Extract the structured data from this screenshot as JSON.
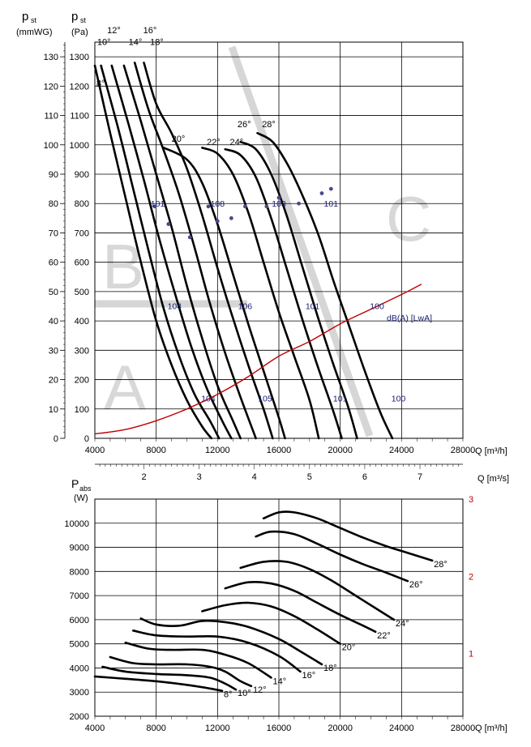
{
  "chart_data": [
    {
      "type": "line",
      "title": "",
      "xlabel": "Q [m³/h]",
      "x2label": "Q [m³/s]",
      "ylabel_left": [
        "p",
        "st",
        "(mmWG)"
      ],
      "ylabel_right": [
        "p",
        "st",
        "(Pa)"
      ],
      "xlim": [
        4000,
        28000
      ],
      "ylim_pa": [
        0,
        1350
      ],
      "ylim_mmwg": [
        0,
        135
      ],
      "x_ticks": [
        "4000",
        "8000",
        "12000",
        "16000",
        "20000",
        "24000",
        "28000"
      ],
      "x2_ticks": [
        "2",
        "3",
        "4",
        "5",
        "6",
        "7"
      ],
      "y_ticks_pa": [
        "0",
        "100",
        "200",
        "300",
        "400",
        "500",
        "600",
        "700",
        "800",
        "900",
        "1000",
        "1100",
        "1200",
        "1300"
      ],
      "y_ticks_mmwg": [
        "0",
        "10",
        "20",
        "30",
        "40",
        "50",
        "60",
        "70",
        "80",
        "90",
        "100",
        "110",
        "120",
        "130"
      ],
      "zones": [
        "A",
        "B",
        "C"
      ],
      "series": [
        {
          "name": "8°",
          "label": "8°",
          "points": [
            [
              4000,
              1270
            ],
            [
              5000,
              1040
            ],
            [
              6000,
              820
            ],
            [
              7000,
              600
            ],
            [
              8000,
              400
            ],
            [
              9000,
              250
            ],
            [
              10000,
              130
            ],
            [
              11000,
              40
            ],
            [
              11600,
              0
            ]
          ]
        },
        {
          "name": "10°",
          "label": "10°",
          "points": [
            [
              4400,
              1270
            ],
            [
              5500,
              1060
            ],
            [
              6500,
              850
            ],
            [
              7500,
              640
            ],
            [
              8500,
              440
            ],
            [
              9500,
              280
            ],
            [
              10500,
              150
            ],
            [
              11500,
              60
            ],
            [
              12100,
              0
            ]
          ]
        },
        {
          "name": "12°",
          "label": "12°",
          "points": [
            [
              5100,
              1270
            ],
            [
              6200,
              1070
            ],
            [
              7200,
              880
            ],
            [
              8200,
              680
            ],
            [
              9300,
              480
            ],
            [
              10300,
              310
            ],
            [
              11300,
              170
            ],
            [
              12300,
              60
            ],
            [
              12900,
              0
            ]
          ]
        },
        {
          "name": "14°",
          "label": "14°",
          "points": [
            [
              5900,
              1270
            ],
            [
              7000,
              1080
            ],
            [
              8000,
              900
            ],
            [
              9000,
              720
            ],
            [
              10000,
              520
            ],
            [
              11000,
              340
            ],
            [
              12000,
              180
            ],
            [
              13000,
              60
            ],
            [
              13500,
              0
            ]
          ]
        },
        {
          "name": "16°",
          "label": "16°",
          "points": [
            [
              6600,
              1280
            ],
            [
              7500,
              1120
            ],
            [
              8500,
              980
            ],
            [
              9500,
              830
            ],
            [
              10500,
              650
            ],
            [
              11500,
              460
            ],
            [
              12500,
              290
            ],
            [
              13500,
              140
            ],
            [
              14500,
              0
            ]
          ]
        },
        {
          "name": "18°",
          "label": "18°",
          "points": [
            [
              7200,
              1280
            ],
            [
              8000,
              1140
            ],
            [
              9000,
              1040
            ],
            [
              10000,
              920
            ],
            [
              11000,
              760
            ],
            [
              12000,
              580
            ],
            [
              13000,
              410
            ],
            [
              14000,
              250
            ],
            [
              15000,
              100
            ],
            [
              15600,
              0
            ]
          ]
        },
        {
          "name": "20°",
          "label": "20°",
          "points": [
            [
              8500,
              990
            ],
            [
              10000,
              950
            ],
            [
              11000,
              870
            ],
            [
              12000,
              730
            ],
            [
              13000,
              560
            ],
            [
              14000,
              390
            ],
            [
              15000,
              230
            ],
            [
              16000,
              70
            ],
            [
              16400,
              0
            ]
          ]
        },
        {
          "name": "22°",
          "label": "22°",
          "points": [
            [
              11000,
              990
            ],
            [
              12000,
              970
            ],
            [
              13000,
              900
            ],
            [
              14000,
              770
            ],
            [
              15000,
              600
            ],
            [
              16000,
              430
            ],
            [
              17000,
              280
            ],
            [
              18000,
              130
            ],
            [
              18600,
              0
            ]
          ]
        },
        {
          "name": "24°",
          "label": "24°",
          "points": [
            [
              12500,
              985
            ],
            [
              13500,
              965
            ],
            [
              14500,
              890
            ],
            [
              15500,
              750
            ],
            [
              16500,
              580
            ],
            [
              17500,
              410
            ],
            [
              18500,
              250
            ],
            [
              19500,
              100
            ],
            [
              20100,
              0
            ]
          ]
        },
        {
          "name": "26°",
          "label": "26°",
          "points": [
            [
              13500,
              1010
            ],
            [
              14500,
              985
            ],
            [
              15500,
              900
            ],
            [
              16500,
              760
            ],
            [
              17500,
              590
            ],
            [
              18500,
              420
            ],
            [
              19500,
              260
            ],
            [
              20500,
              110
            ],
            [
              21100,
              0
            ]
          ]
        },
        {
          "name": "28°",
          "label": "28°",
          "points": [
            [
              14600,
              1040
            ],
            [
              15600,
              1010
            ],
            [
              16600,
              930
            ],
            [
              17600,
              820
            ],
            [
              18600,
              690
            ],
            [
              19600,
              530
            ],
            [
              20600,
              380
            ],
            [
              21600,
              230
            ],
            [
              22600,
              90
            ],
            [
              23400,
              0
            ]
          ]
        },
        {
          "name": "dB(A) [LwA]",
          "color": "#c00000",
          "points": [
            [
              4000,
              15
            ],
            [
              6000,
              30
            ],
            [
              8000,
              60
            ],
            [
              10000,
              100
            ],
            [
              12000,
              150
            ],
            [
              14000,
              210
            ],
            [
              16000,
              280
            ],
            [
              18000,
              330
            ],
            [
              20000,
              390
            ],
            [
              22000,
              440
            ],
            [
              24000,
              490
            ],
            [
              25300,
              525
            ]
          ]
        }
      ],
      "noise_labels": [
        {
          "text": "101",
          "x": 8100,
          "y": 790
        },
        {
          "text": "108",
          "x": 12000,
          "y": 790
        },
        {
          "text": "103",
          "x": 16000,
          "y": 790
        },
        {
          "text": "101",
          "x": 19400,
          "y": 790
        },
        {
          "text": "104",
          "x": 9200,
          "y": 440
        },
        {
          "text": "106",
          "x": 13800,
          "y": 440
        },
        {
          "text": "101",
          "x": 18200,
          "y": 440
        },
        {
          "text": "100",
          "x": 22400,
          "y": 440
        },
        {
          "text": "104",
          "x": 11400,
          "y": 125
        },
        {
          "text": "105",
          "x": 15100,
          "y": 125
        },
        {
          "text": "101",
          "x": 20000,
          "y": 125
        },
        {
          "text": "100",
          "x": 23800,
          "y": 125
        }
      ],
      "noise_legend": "dB(A) [LwA]",
      "noise_dots": [
        [
          7900,
          790
        ],
        [
          8800,
          730
        ],
        [
          10200,
          685
        ],
        [
          11400,
          790
        ],
        [
          12000,
          740
        ],
        [
          12900,
          750
        ],
        [
          13800,
          790
        ],
        [
          15200,
          790
        ],
        [
          16000,
          820
        ],
        [
          17300,
          800
        ],
        [
          18800,
          835
        ],
        [
          19400,
          850
        ]
      ]
    },
    {
      "type": "line",
      "title": "",
      "xlabel": "Q [m³/h]",
      "ylabel": [
        "P",
        "abs",
        "(W)"
      ],
      "xlim": [
        4000,
        28000
      ],
      "ylim": [
        2000,
        11000
      ],
      "x_ticks": [
        "4000",
        "8000",
        "12000",
        "16000",
        "20000",
        "24000",
        "28000"
      ],
      "y_ticks": [
        "2000",
        "3000",
        "4000",
        "5000",
        "6000",
        "7000",
        "8000",
        "9000",
        "10000"
      ],
      "right_ticks": [
        "1",
        "2",
        "3"
      ],
      "right_tick_values": [
        4600,
        7800,
        11000
      ],
      "right_tick_color": "#c00000",
      "series": [
        {
          "name": "8°",
          "label": "8°",
          "points": [
            [
              4000,
              3650
            ],
            [
              6000,
              3550
            ],
            [
              8000,
              3450
            ],
            [
              10000,
              3300
            ],
            [
              11500,
              3150
            ],
            [
              12300,
              3050
            ]
          ]
        },
        {
          "name": "10°",
          "label": "10°",
          "points": [
            [
              4500,
              4050
            ],
            [
              6000,
              3850
            ],
            [
              8000,
              3750
            ],
            [
              10000,
              3700
            ],
            [
              11500,
              3600
            ],
            [
              12500,
              3350
            ],
            [
              13200,
              3100
            ]
          ]
        },
        {
          "name": "12°",
          "label": "12°",
          "points": [
            [
              5000,
              4450
            ],
            [
              6500,
              4200
            ],
            [
              8000,
              4150
            ],
            [
              10000,
              4150
            ],
            [
              11500,
              4050
            ],
            [
              12500,
              3850
            ],
            [
              13500,
              3450
            ],
            [
              14200,
              3250
            ]
          ]
        },
        {
          "name": "14°",
          "label": "14°",
          "points": [
            [
              6000,
              5050
            ],
            [
              7500,
              4800
            ],
            [
              9000,
              4750
            ],
            [
              11000,
              4750
            ],
            [
              12500,
              4550
            ],
            [
              14000,
              4200
            ],
            [
              15500,
              3600
            ]
          ]
        },
        {
          "name": "16°",
          "label": "16°",
          "points": [
            [
              6500,
              5550
            ],
            [
              8000,
              5350
            ],
            [
              10000,
              5300
            ],
            [
              12000,
              5300
            ],
            [
              14000,
              5050
            ],
            [
              16000,
              4500
            ],
            [
              17400,
              3850
            ]
          ]
        },
        {
          "name": "18°",
          "label": "18°",
          "points": [
            [
              7000,
              6050
            ],
            [
              8000,
              5800
            ],
            [
              9500,
              5750
            ],
            [
              11000,
              5950
            ],
            [
              12500,
              5900
            ],
            [
              14000,
              5700
            ],
            [
              16000,
              5200
            ],
            [
              17500,
              4650
            ],
            [
              18800,
              4150
            ]
          ]
        },
        {
          "name": "20°",
          "label": "20°",
          "points": [
            [
              11000,
              6350
            ],
            [
              12500,
              6600
            ],
            [
              14000,
              6700
            ],
            [
              15500,
              6550
            ],
            [
              17000,
              6150
            ],
            [
              18500,
              5600
            ],
            [
              20000,
              5000
            ]
          ]
        },
        {
          "name": "22°",
          "label": "22°",
          "points": [
            [
              12500,
              7300
            ],
            [
              14000,
              7550
            ],
            [
              15500,
              7500
            ],
            [
              17000,
              7200
            ],
            [
              18500,
              6700
            ],
            [
              20000,
              6200
            ],
            [
              21500,
              5750
            ],
            [
              22300,
              5500
            ]
          ]
        },
        {
          "name": "24°",
          "label": "24°",
          "points": [
            [
              13500,
              8150
            ],
            [
              15000,
              8400
            ],
            [
              16500,
              8400
            ],
            [
              18000,
              8100
            ],
            [
              19500,
              7600
            ],
            [
              21000,
              7000
            ],
            [
              22500,
              6400
            ],
            [
              23500,
              6000
            ]
          ]
        },
        {
          "name": "26°",
          "label": "26°",
          "points": [
            [
              14500,
              9450
            ],
            [
              15500,
              9650
            ],
            [
              17000,
              9550
            ],
            [
              18500,
              9150
            ],
            [
              20000,
              8700
            ],
            [
              21500,
              8300
            ],
            [
              23000,
              7950
            ],
            [
              24400,
              7600
            ]
          ]
        },
        {
          "name": "28°",
          "label": "28°",
          "points": [
            [
              15000,
              10200
            ],
            [
              16000,
              10450
            ],
            [
              17000,
              10450
            ],
            [
              18500,
              10200
            ],
            [
              20000,
              9800
            ],
            [
              21500,
              9400
            ],
            [
              23000,
              9050
            ],
            [
              24500,
              8750
            ],
            [
              26000,
              8450
            ]
          ]
        }
      ]
    }
  ]
}
